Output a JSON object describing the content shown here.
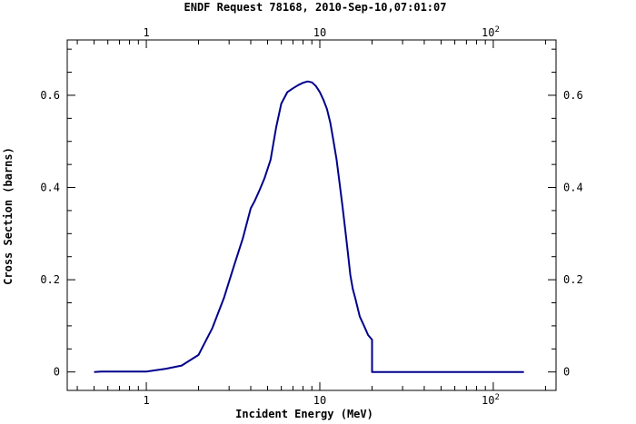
{
  "chart_data": {
    "type": "line",
    "title": "ENDF Request 78168, 2010-Sep-10,07:01:07",
    "xlabel": "Incident Energy (MeV)",
    "ylabel": "Cross Section (barns)",
    "xscale": "log",
    "xlim": [
      0.35,
      230
    ],
    "ylim": [
      -0.04,
      0.72
    ],
    "grid": false,
    "line_color": "#00008b",
    "x_ticks": [
      {
        "value": 1,
        "label": "1",
        "sup": ""
      },
      {
        "value": 10,
        "label": "10",
        "sup": ""
      },
      {
        "value": 100,
        "label": "10",
        "sup": "2"
      }
    ],
    "y_ticks": [
      {
        "value": 0,
        "label": "0"
      },
      {
        "value": 0.2,
        "label": "0.2"
      },
      {
        "value": 0.4,
        "label": "0.4"
      },
      {
        "value": 0.6,
        "label": "0.6"
      }
    ],
    "series": [
      {
        "x": [
          0.5,
          0.55,
          0.7,
          1.0,
          1.3,
          1.6,
          2.0,
          2.4,
          2.8,
          3.2,
          3.6,
          4.0,
          4.2,
          4.5,
          4.8,
          5.2,
          5.6,
          6.0,
          6.5,
          7.0,
          7.5,
          8.0,
          8.5,
          9.0,
          9.5,
          10.0,
          10.5,
          11.0,
          11.5,
          12.0,
          12.5,
          13.0,
          13.5,
          14.0,
          14.5,
          15.0,
          15.5,
          16.0,
          17.0,
          18.0,
          19.0,
          20.0,
          20.0,
          30.0,
          50.0,
          100.0,
          150.0
        ],
        "y": [
          0.0,
          0.001,
          0.001,
          0.001,
          0.007,
          0.014,
          0.037,
          0.095,
          0.16,
          0.23,
          0.29,
          0.355,
          0.37,
          0.395,
          0.42,
          0.46,
          0.53,
          0.582,
          0.607,
          0.615,
          0.622,
          0.627,
          0.63,
          0.628,
          0.62,
          0.607,
          0.59,
          0.57,
          0.54,
          0.5,
          0.46,
          0.41,
          0.36,
          0.31,
          0.26,
          0.21,
          0.18,
          0.16,
          0.12,
          0.1,
          0.08,
          0.07,
          0.0,
          0.0,
          0.0,
          0.0,
          0.0
        ]
      }
    ]
  }
}
